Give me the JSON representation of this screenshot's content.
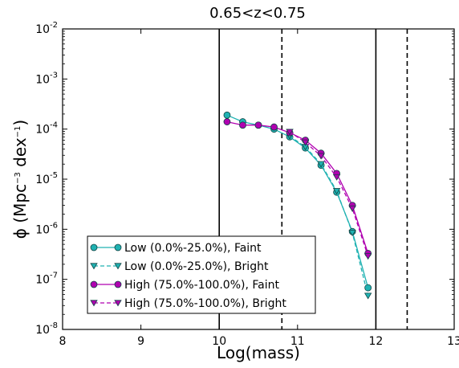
{
  "chart_data": {
    "type": "line",
    "title": "0.65<z<0.75",
    "xlabel": "Log(mass)",
    "ylabel_parts": [
      "ϕ (Mpc",
      "−3",
      " dex",
      "−1",
      ")"
    ],
    "xlim": [
      8,
      13
    ],
    "ylim_log10": [
      -8,
      -2
    ],
    "yscale": "log",
    "xticks": [
      "8",
      "9",
      "10",
      "11",
      "12",
      "13"
    ],
    "yticks": [
      {
        "base": "10",
        "exp": "-2"
      },
      {
        "base": "10",
        "exp": "-3"
      },
      {
        "base": "10",
        "exp": "-4"
      },
      {
        "base": "10",
        "exp": "-5"
      },
      {
        "base": "10",
        "exp": "-6"
      },
      {
        "base": "10",
        "exp": "-7"
      },
      {
        "base": "10",
        "exp": "-8"
      }
    ],
    "vlines": [
      {
        "x": 10.0,
        "style": "solid"
      },
      {
        "x": 12.0,
        "style": "solid"
      },
      {
        "x": 10.8,
        "style": "dashed"
      },
      {
        "x": 12.4,
        "style": "dashed"
      }
    ],
    "legend_position": "lower-left",
    "series": [
      {
        "name": "Low (0.0%-25.0%), Faint",
        "color": "#20b2b2",
        "marker": "circle",
        "dash": "solid",
        "x": [
          10.1,
          10.3,
          10.5,
          10.7,
          10.9,
          11.1,
          11.3,
          11.5,
          11.7,
          11.9
        ],
        "y": [
          0.00019,
          0.00014,
          0.00012,
          0.0001,
          7e-05,
          4.2e-05,
          1.9e-05,
          5.5e-06,
          9e-07,
          6.8e-08
        ]
      },
      {
        "name": "Low (0.0%-25.0%), Bright",
        "color": "#20b2b2",
        "marker": "triangle-down",
        "dash": "dashed",
        "x": [
          10.9,
          11.1,
          11.3,
          11.5,
          11.7,
          11.9
        ],
        "y": [
          7.3e-05,
          4.4e-05,
          2e-05,
          5.8e-06,
          8.5e-07,
          4.7e-08
        ]
      },
      {
        "name": "High (75.0%-100.0%), Faint",
        "color": "#b000b0",
        "marker": "circle",
        "dash": "solid",
        "x": [
          10.1,
          10.3,
          10.5,
          10.7,
          10.9,
          11.1,
          11.3,
          11.5,
          11.7,
          11.9
        ],
        "y": [
          0.00014,
          0.00012,
          0.00012,
          0.00011,
          8.5e-05,
          6e-05,
          3.3e-05,
          1.3e-05,
          3e-06,
          3.3e-07
        ]
      },
      {
        "name": "High (75.0%-100.0%), Bright",
        "color": "#b000b0",
        "marker": "triangle-down",
        "dash": "dashed",
        "x": [
          10.9,
          11.1,
          11.3,
          11.5,
          11.7,
          11.9
        ],
        "y": [
          8.8e-05,
          5.4e-05,
          2.9e-05,
          1.1e-05,
          2.6e-06,
          2.9e-07
        ]
      }
    ]
  }
}
